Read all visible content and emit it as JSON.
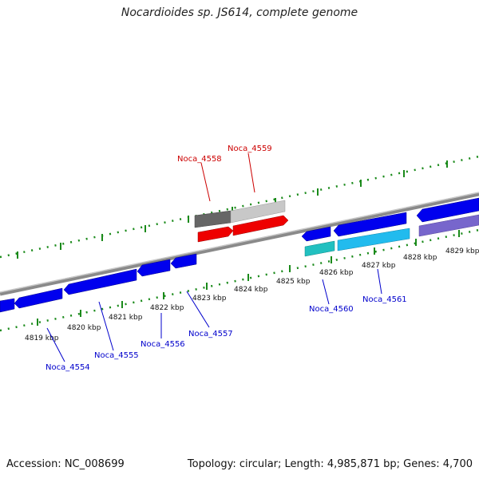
{
  "title": "Nocardioides sp. JS614, complete genome",
  "footer": {
    "accession": "Accession: NC_008699",
    "summary": "Topology: circular; Length: 4,985,871 bp; Genes: 4,700"
  },
  "colors": {
    "backbone": "#8a8a8a",
    "tick": "#1a8a1a",
    "forward_label": "#cc0000",
    "reverse_label": "#0000cc"
  },
  "scale_labels": [
    "4819 kbp",
    "4820 kbp",
    "4821 kbp",
    "4822 kbp",
    "4823 kbp",
    "4824 kbp",
    "4825 kbp",
    "4826 kbp",
    "4827 kbp",
    "4828 kbp",
    "4829 kbp"
  ],
  "gene_labels": [
    {
      "text": "Noca_4558",
      "strand": "forward"
    },
    {
      "text": "Noca_4559",
      "strand": "forward"
    },
    {
      "text": "Noca_4554",
      "strand": "reverse"
    },
    {
      "text": "Noca_4555",
      "strand": "reverse"
    },
    {
      "text": "Noca_4556",
      "strand": "reverse"
    },
    {
      "text": "Noca_4557",
      "strand": "reverse"
    },
    {
      "text": "Noca_4560",
      "strand": "reverse"
    },
    {
      "text": "Noca_4561",
      "strand": "reverse"
    }
  ]
}
